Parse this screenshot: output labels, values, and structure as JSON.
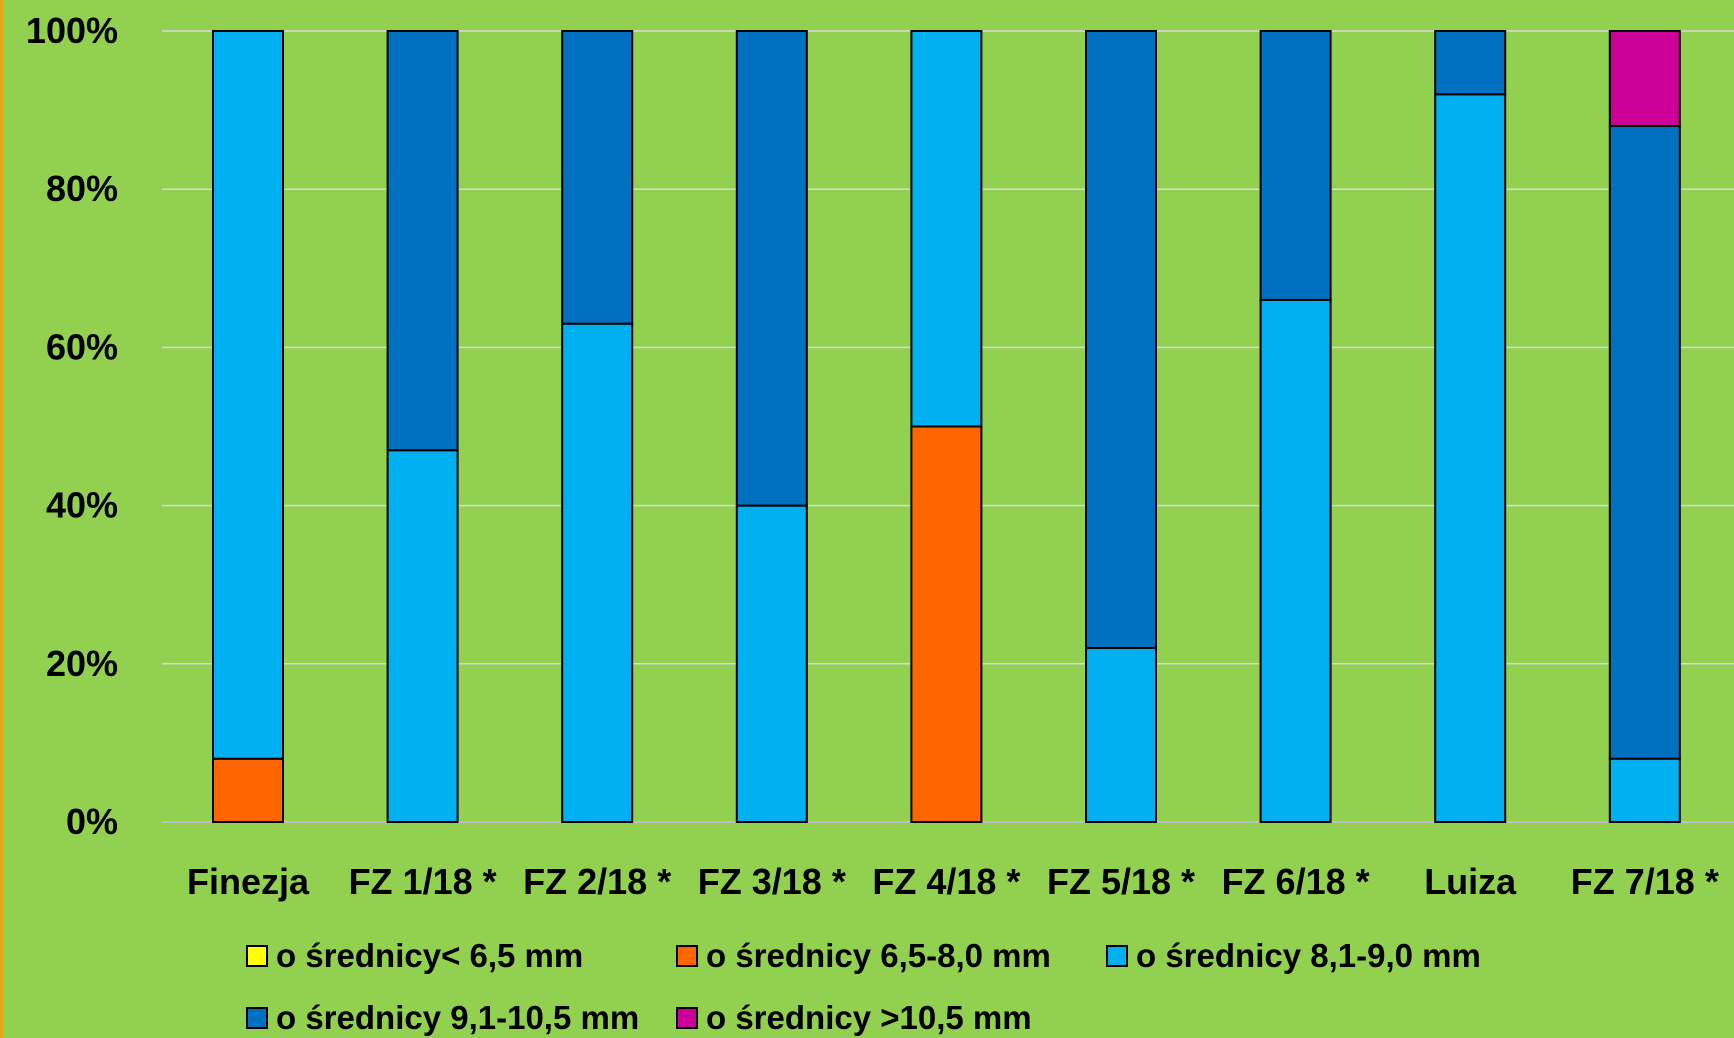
{
  "chart_data": {
    "type": "bar",
    "stacked": true,
    "normalized": true,
    "title": "",
    "xlabel": "",
    "ylabel": "",
    "ylim": [
      0,
      100
    ],
    "y_ticks": [
      "0%",
      "20%",
      "40%",
      "60%",
      "80%",
      "100%"
    ],
    "grid": "horizontal",
    "legend_position": "bottom",
    "categories": [
      "Finezja",
      "FZ 1/18 *",
      "FZ 2/18 *",
      "FZ 3/18 *",
      "FZ 4/18 *",
      "FZ 5/18 *",
      "FZ 6/18 *",
      "Luiza",
      "FZ 7/18 *"
    ],
    "series": [
      {
        "name": "o średnicy< 6,5 mm",
        "color": "#ffff00",
        "values": [
          0,
          0,
          0,
          0,
          0,
          0,
          0,
          0,
          0
        ]
      },
      {
        "name": "o średnicy 6,5-8,0 mm",
        "color": "#ff6600",
        "values": [
          8,
          0,
          0,
          0,
          50,
          0,
          0,
          0,
          0
        ]
      },
      {
        "name": "o średnicy 8,1-9,0 mm",
        "color": "#00b0f0",
        "values": [
          92,
          47,
          63,
          40,
          50,
          22,
          66,
          92,
          8
        ]
      },
      {
        "name": "o średnicy 9,1-10,5 mm",
        "color": "#0070c0",
        "values": [
          0,
          53,
          37,
          60,
          0,
          78,
          34,
          8,
          80
        ]
      },
      {
        "name": "o średnicy >10,5 mm",
        "color": "#cc0099",
        "values": [
          0,
          0,
          0,
          0,
          0,
          0,
          0,
          0,
          12
        ]
      }
    ]
  }
}
